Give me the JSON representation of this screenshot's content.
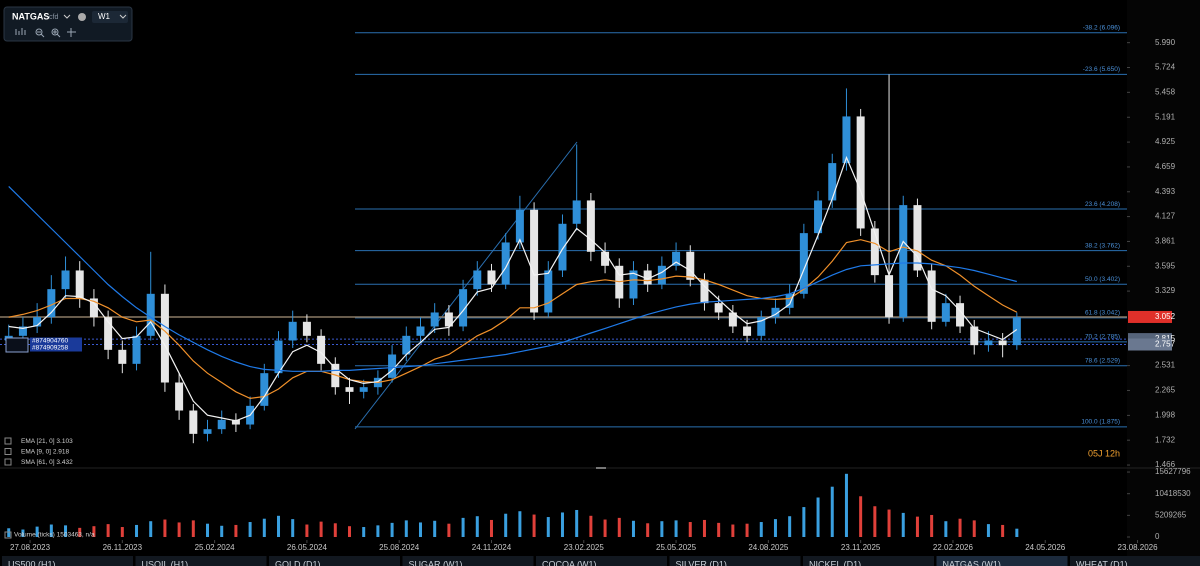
{
  "toolbar": {
    "symbol": "NATGAS",
    "kind": "cfd",
    "timeframe": "W1"
  },
  "chart_data": {
    "type": "candlestick",
    "up_color": "#2f8fd8",
    "down_color": "#e6e6e6",
    "vol_up_color": "#3aa0e0",
    "vol_down_color": "#e0403a",
    "x": [
      -3,
      -1,
      1,
      3,
      5,
      7,
      9,
      11,
      13,
      15,
      17,
      19,
      21,
      23,
      25,
      27,
      29,
      31,
      33,
      35,
      37,
      39,
      41,
      43,
      45,
      47,
      49,
      51,
      53,
      55,
      57,
      59,
      61,
      63,
      65,
      67,
      69,
      71,
      73,
      75,
      77,
      79,
      81,
      83,
      85,
      87,
      89,
      91,
      93,
      95,
      97,
      99,
      101,
      103,
      105,
      107,
      109,
      111,
      113,
      115,
      117,
      119,
      121,
      123,
      125,
      127,
      129,
      131,
      133,
      135,
      137,
      139
    ],
    "open": [
      2.8,
      2.85,
      2.95,
      3.05,
      3.35,
      3.55,
      3.25,
      3.05,
      2.7,
      2.55,
      2.85,
      3.3,
      2.35,
      2.05,
      1.8,
      1.85,
      1.95,
      1.9,
      2.1,
      2.45,
      2.8,
      3.0,
      2.85,
      2.55,
      2.3,
      2.25,
      2.3,
      2.4,
      2.65,
      2.85,
      2.95,
      3.1,
      2.95,
      3.35,
      3.55,
      3.4,
      3.85,
      4.2,
      3.1,
      3.55,
      4.05,
      4.3,
      3.75,
      3.6,
      3.25,
      3.55,
      3.4,
      3.6,
      3.75,
      3.45,
      3.2,
      3.1,
      2.95,
      2.85,
      3.05,
      3.15,
      3.3,
      3.95,
      4.3,
      4.7,
      5.2,
      4.0,
      3.5,
      3.05,
      4.25,
      3.55,
      3.0,
      3.2,
      2.95,
      2.75,
      2.8,
      2.75
    ],
    "high": [
      2.97,
      3.05,
      3.2,
      3.5,
      3.7,
      3.65,
      3.35,
      3.12,
      2.8,
      2.95,
      3.75,
      3.4,
      2.45,
      2.12,
      1.95,
      2.05,
      2.02,
      2.2,
      2.55,
      2.9,
      3.12,
      3.08,
      2.92,
      2.62,
      2.4,
      2.38,
      2.48,
      2.75,
      2.95,
      3.05,
      3.2,
      3.18,
      3.45,
      3.65,
      3.62,
      3.95,
      4.35,
      4.28,
      3.65,
      4.15,
      4.9,
      4.38,
      3.85,
      3.68,
      3.65,
      3.62,
      3.7,
      3.85,
      3.82,
      3.52,
      3.28,
      3.18,
      3.02,
      3.12,
      3.25,
      3.4,
      4.05,
      4.4,
      4.8,
      5.5,
      5.28,
      4.08,
      5.65,
      4.35,
      4.32,
      3.62,
      3.3,
      3.28,
      3.02,
      2.9,
      2.88,
      3.1
    ],
    "low": [
      2.7,
      2.78,
      2.88,
      2.98,
      3.25,
      3.15,
      2.95,
      2.6,
      2.45,
      2.48,
      2.8,
      2.25,
      1.95,
      1.7,
      1.72,
      1.8,
      1.82,
      1.85,
      2.05,
      2.4,
      2.72,
      2.78,
      2.48,
      2.22,
      2.12,
      2.18,
      2.22,
      2.35,
      2.58,
      2.78,
      2.88,
      2.85,
      2.9,
      3.28,
      3.32,
      3.35,
      3.78,
      3.02,
      3.05,
      3.48,
      3.98,
      3.65,
      3.52,
      3.15,
      3.18,
      3.32,
      3.35,
      3.55,
      3.38,
      3.12,
      3.02,
      2.88,
      2.78,
      2.8,
      2.98,
      3.08,
      3.25,
      3.88,
      4.22,
      4.62,
      3.92,
      3.42,
      2.98,
      3.0,
      3.48,
      2.92,
      2.95,
      2.88,
      2.65,
      2.68,
      2.62,
      2.7
    ],
    "close": [
      2.85,
      2.95,
      3.05,
      3.35,
      3.55,
      3.25,
      3.05,
      2.7,
      2.55,
      2.85,
      3.3,
      2.35,
      2.05,
      1.8,
      1.85,
      1.95,
      1.9,
      2.1,
      2.45,
      2.8,
      3.0,
      2.85,
      2.55,
      2.3,
      2.25,
      2.3,
      2.4,
      2.65,
      2.85,
      2.95,
      3.1,
      2.95,
      3.35,
      3.55,
      3.4,
      3.85,
      4.2,
      3.1,
      3.55,
      4.05,
      4.3,
      3.75,
      3.6,
      3.25,
      3.55,
      3.4,
      3.6,
      3.75,
      3.45,
      3.2,
      3.1,
      2.95,
      2.85,
      3.05,
      3.15,
      3.3,
      3.95,
      4.3,
      4.7,
      5.2,
      4.0,
      3.5,
      3.05,
      4.25,
      3.55,
      3.0,
      3.2,
      2.95,
      2.75,
      2.8,
      2.75,
      3.05
    ],
    "volume": [
      2100000,
      1800000,
      2500000,
      3000000,
      2800000,
      2200000,
      2600000,
      3100000,
      2400000,
      2900000,
      3800000,
      4200000,
      3500000,
      4000000,
      3200000,
      2700000,
      2900000,
      3600000,
      4400000,
      5100000,
      4300000,
      3000000,
      3700000,
      3300000,
      2600000,
      2400000,
      2800000,
      3400000,
      4000000,
      3500000,
      3900000,
      3200000,
      4600000,
      5000000,
      4100000,
      5600000,
      6200000,
      5400000,
      4800000,
      5900000,
      6500000,
      5100000,
      4200000,
      4600000,
      3900000,
      3300000,
      3800000,
      4000000,
      3600000,
      4100000,
      3400000,
      3000000,
      3200000,
      3600000,
      4300000,
      5000000,
      7200000,
      9500000,
      12100000,
      15200000,
      9800000,
      7400000,
      6600000,
      5800000,
      4900000,
      5300000,
      3800000,
      4400000,
      4000000,
      3100000,
      2900000,
      2000000
    ],
    "ma_series": [
      {
        "name": "EMA [21, 0]",
        "last": 3.103,
        "color": "#f0902a",
        "values": [
          3.05,
          3.08,
          3.12,
          3.18,
          3.25,
          3.25,
          3.22,
          3.15,
          3.05,
          3.0,
          3.02,
          2.9,
          2.75,
          2.58,
          2.45,
          2.35,
          2.25,
          2.18,
          2.2,
          2.28,
          2.4,
          2.47,
          2.47,
          2.43,
          2.38,
          2.36,
          2.35,
          2.38,
          2.45,
          2.52,
          2.6,
          2.65,
          2.75,
          2.85,
          2.92,
          3.02,
          3.15,
          3.15,
          3.2,
          3.3,
          3.4,
          3.43,
          3.45,
          3.43,
          3.45,
          3.44,
          3.46,
          3.49,
          3.48,
          3.45,
          3.4,
          3.34,
          3.28,
          3.25,
          3.24,
          3.25,
          3.35,
          3.48,
          3.65,
          3.85,
          3.88,
          3.84,
          3.75,
          3.8,
          3.76,
          3.66,
          3.6,
          3.5,
          3.38,
          3.28,
          3.18,
          3.103
        ]
      },
      {
        "name": "EMA [9, 0]",
        "last": 2.918,
        "color": "#f2f2f2",
        "values": [
          2.95,
          2.93,
          2.96,
          3.1,
          3.28,
          3.27,
          3.2,
          3.0,
          2.82,
          2.84,
          3.0,
          2.75,
          2.45,
          2.15,
          2.0,
          1.97,
          1.94,
          2.0,
          2.2,
          2.45,
          2.68,
          2.75,
          2.67,
          2.5,
          2.38,
          2.34,
          2.36,
          2.48,
          2.65,
          2.78,
          2.92,
          2.94,
          3.12,
          3.32,
          3.36,
          3.58,
          3.88,
          3.5,
          3.52,
          3.78,
          4.0,
          3.88,
          3.74,
          3.5,
          3.52,
          3.46,
          3.53,
          3.64,
          3.55,
          3.38,
          3.24,
          3.1,
          2.98,
          3.01,
          3.08,
          3.19,
          3.56,
          3.93,
          4.32,
          4.76,
          4.4,
          3.95,
          3.5,
          3.86,
          3.7,
          3.35,
          3.28,
          3.12,
          2.93,
          2.87,
          2.81,
          2.918
        ]
      },
      {
        "name": "SMA [61, 0]",
        "last": 3.432,
        "color": "#1f7ae8",
        "values": [
          4.45,
          4.3,
          4.15,
          4.0,
          3.85,
          3.7,
          3.55,
          3.4,
          3.27,
          3.15,
          3.05,
          2.95,
          2.86,
          2.78,
          2.7,
          2.63,
          2.57,
          2.52,
          2.49,
          2.48,
          2.47,
          2.47,
          2.47,
          2.48,
          2.48,
          2.49,
          2.5,
          2.51,
          2.52,
          2.53,
          2.55,
          2.57,
          2.59,
          2.61,
          2.63,
          2.65,
          2.68,
          2.71,
          2.74,
          2.78,
          2.83,
          2.88,
          2.93,
          2.98,
          3.03,
          3.08,
          3.12,
          3.16,
          3.19,
          3.21,
          3.22,
          3.23,
          3.24,
          3.25,
          3.27,
          3.3,
          3.36,
          3.43,
          3.5,
          3.56,
          3.6,
          3.61,
          3.62,
          3.63,
          3.63,
          3.62,
          3.6,
          3.58,
          3.55,
          3.51,
          3.47,
          3.432
        ]
      }
    ],
    "fib_levels": [
      {
        "label": "-38.2 (6.096)",
        "value": 6.096
      },
      {
        "label": "-23.6 (5.650)",
        "value": 5.65
      },
      {
        "label": "23.6 (4.208)",
        "value": 4.208
      },
      {
        "label": "38.2 (3.762)",
        "value": 3.762
      },
      {
        "label": "50.0 (3.402)",
        "value": 3.402
      },
      {
        "label": "61.8 (3.042)",
        "value": 3.042
      },
      {
        "label": "70.2 (2.785)",
        "value": 2.785
      },
      {
        "label": "78.6 (2.529)",
        "value": 2.529
      },
      {
        "label": "100.0 (1.875)",
        "value": 1.875
      }
    ],
    "price_tags": [
      {
        "value": 3.052,
        "color": "#e0302a"
      },
      {
        "value": 2.815,
        "color": "#56647a"
      },
      {
        "value": 2.757,
        "color": "#6a7890"
      }
    ],
    "orders": [
      "#874904760",
      "#874909258"
    ],
    "countdown": "05J 12h",
    "volume_label": "Volume (ticks) 1503463, n/a",
    "xlim": [
      -4.23,
      164.8
    ],
    "xticks": [
      {
        "value": 0,
        "label": "27.08.2023"
      },
      {
        "value": 13,
        "label": "26.11.2023"
      },
      {
        "value": 26,
        "label": "25.02.2024"
      },
      {
        "value": 39,
        "label": "26.05.2024"
      },
      {
        "value": 52,
        "label": "25.08.2024"
      },
      {
        "value": 65,
        "label": "24.11.2024"
      },
      {
        "value": 78,
        "label": "23.02.2025"
      },
      {
        "value": 91,
        "label": "25.05.2025"
      },
      {
        "value": 104,
        "label": "24.08.2025"
      },
      {
        "value": 117,
        "label": "23.11.2025"
      },
      {
        "value": 130,
        "label": "22.02.2026"
      },
      {
        "value": 143,
        "label": "24.05.2026"
      },
      {
        "value": 156,
        "label": "23.08.2026"
      }
    ],
    "ylim": [
      1.445,
      6.447
    ],
    "yticks": [
      {
        "value": 5.99,
        "label": "5.990"
      },
      5.724,
      5.458,
      5.191,
      4.925,
      4.659,
      4.393,
      4.127,
      3.861,
      3.595,
      3.329,
      2.531,
      2.265,
      1.998,
      1.732,
      1.466
    ],
    "volume_ylim": [
      0,
      16600000
    ],
    "volume_ticks": [
      15627796,
      10418530,
      5209265,
      0
    ]
  },
  "tabs": [
    "US500 (H1)",
    "USOIL (H1)",
    "GOLD (D1)",
    "SUGAR (W1)",
    "COCOA (W1)",
    "SILVER (D1)",
    "NICKEL (D1)",
    "NATGAS (W1)",
    "WHEAT (D1)"
  ]
}
